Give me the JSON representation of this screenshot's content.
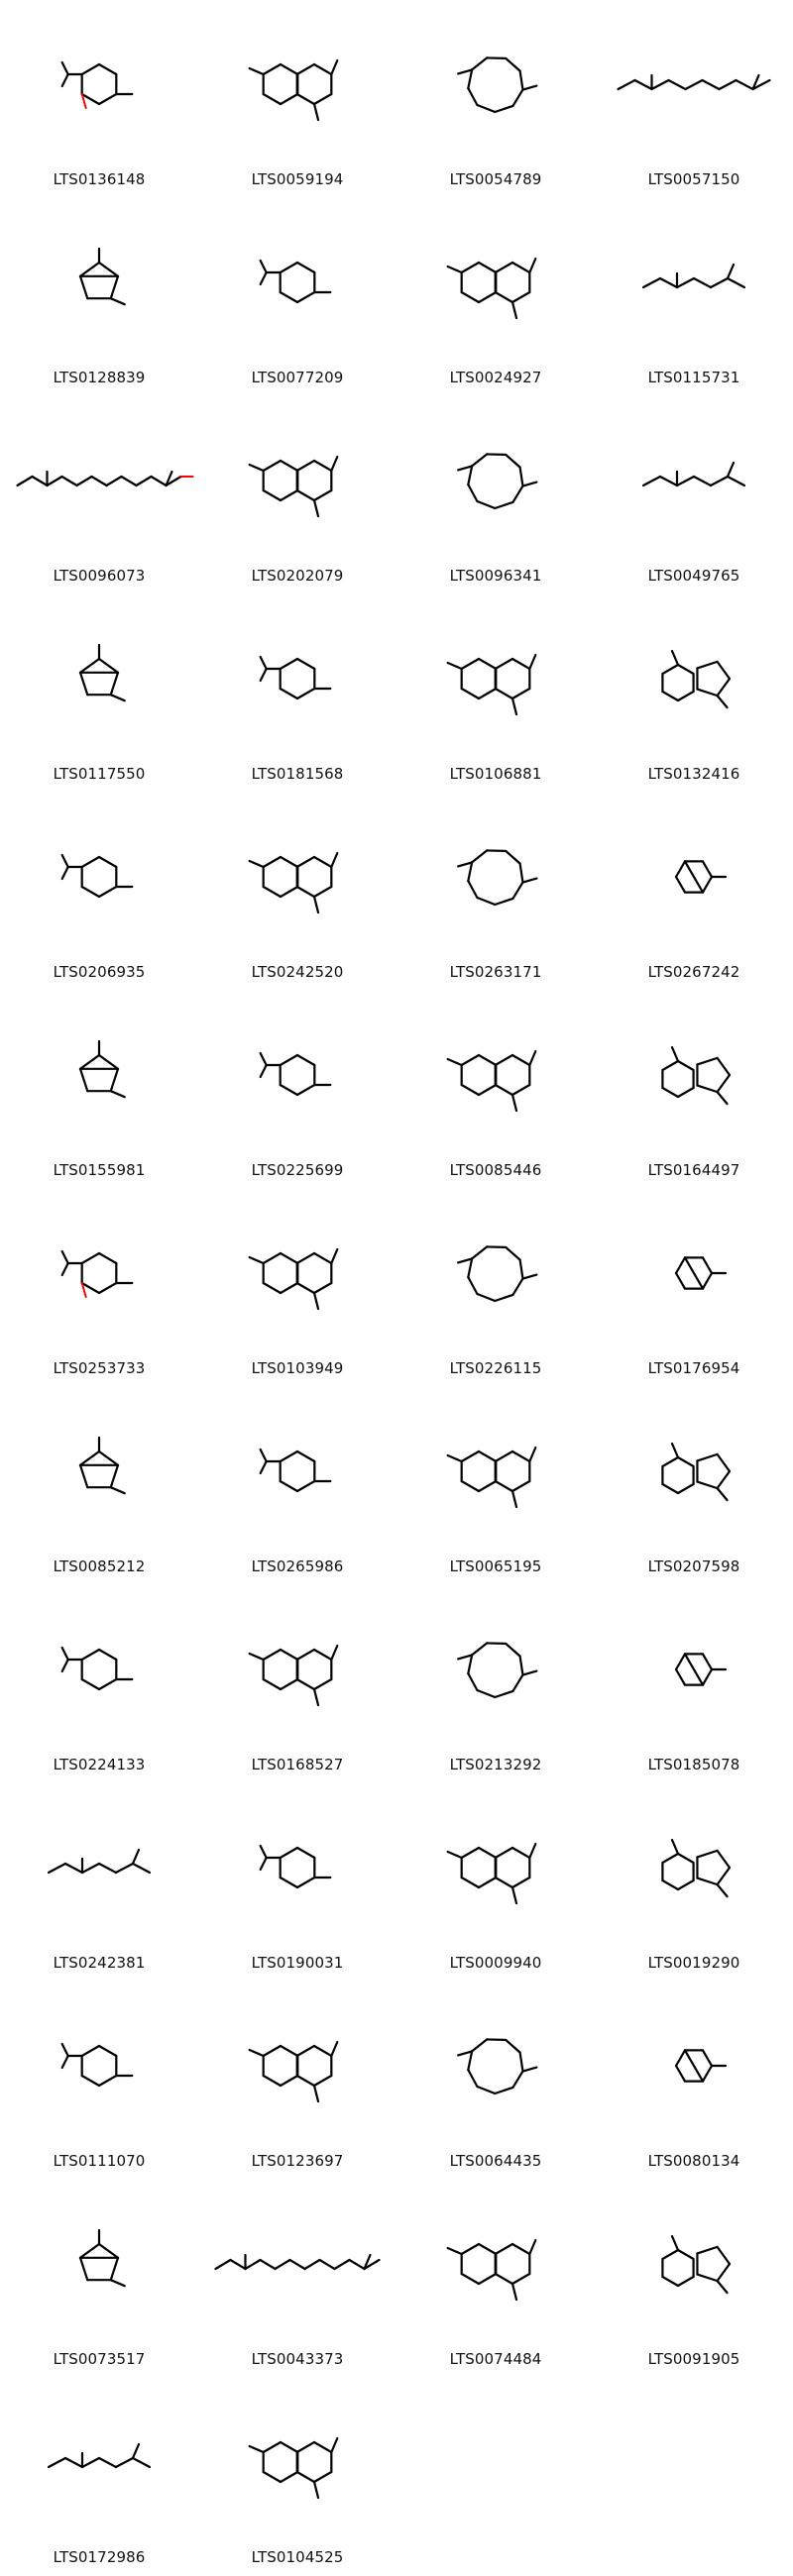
{
  "grid": {
    "columns": 4,
    "background": "#ffffff",
    "bond_color": "#000000",
    "heteroatom_color": "#ff0000",
    "molecules": [
      {
        "id": "LTS0136148"
      },
      {
        "id": "LTS0059194"
      },
      {
        "id": "LTS0054789"
      },
      {
        "id": "LTS0057150"
      },
      {
        "id": "LTS0128839"
      },
      {
        "id": "LTS0077209"
      },
      {
        "id": "LTS0024927"
      },
      {
        "id": "LTS0115731"
      },
      {
        "id": "LTS0096073"
      },
      {
        "id": "LTS0202079"
      },
      {
        "id": "LTS0096341"
      },
      {
        "id": "LTS0049765"
      },
      {
        "id": "LTS0117550"
      },
      {
        "id": "LTS0181568"
      },
      {
        "id": "LTS0106881"
      },
      {
        "id": "LTS0132416"
      },
      {
        "id": "LTS0206935"
      },
      {
        "id": "LTS0242520"
      },
      {
        "id": "LTS0263171"
      },
      {
        "id": "LTS0267242"
      },
      {
        "id": "LTS0155981"
      },
      {
        "id": "LTS0225699"
      },
      {
        "id": "LTS0085446"
      },
      {
        "id": "LTS0164497"
      },
      {
        "id": "LTS0253733"
      },
      {
        "id": "LTS0103949"
      },
      {
        "id": "LTS0226115"
      },
      {
        "id": "LTS0176954"
      },
      {
        "id": "LTS0085212"
      },
      {
        "id": "LTS0265986"
      },
      {
        "id": "LTS0065195"
      },
      {
        "id": "LTS0207598"
      },
      {
        "id": "LTS0224133"
      },
      {
        "id": "LTS0168527"
      },
      {
        "id": "LTS0213292"
      },
      {
        "id": "LTS0185078"
      },
      {
        "id": "LTS0242381"
      },
      {
        "id": "LTS0190031"
      },
      {
        "id": "LTS0009940"
      },
      {
        "id": "LTS0019290"
      },
      {
        "id": "LTS0111070"
      },
      {
        "id": "LTS0123697"
      },
      {
        "id": "LTS0064435"
      },
      {
        "id": "LTS0080134"
      },
      {
        "id": "LTS0073517"
      },
      {
        "id": "LTS0043373"
      },
      {
        "id": "LTS0074484"
      },
      {
        "id": "LTS0091905"
      },
      {
        "id": "LTS0172986"
      },
      {
        "id": "LTS0104525"
      }
    ]
  }
}
